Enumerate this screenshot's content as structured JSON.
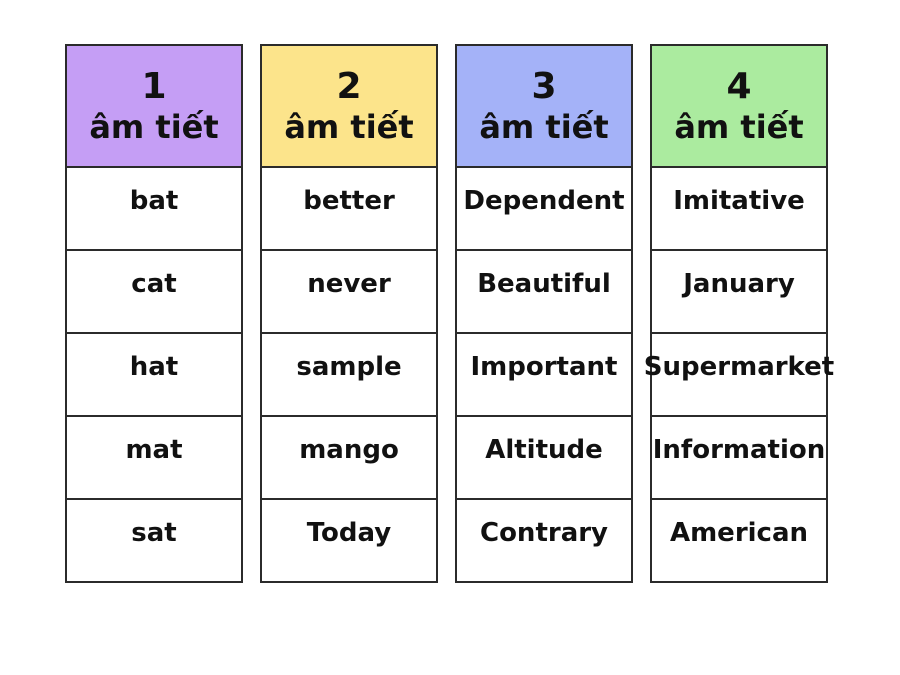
{
  "page": {
    "background_color": "#ffffff",
    "border_color": "#2b2b2b",
    "text_color": "#111111"
  },
  "columns": [
    {
      "number": "1",
      "label": "âm tiết",
      "header_color": "#c59ef5",
      "words": [
        "bat",
        "cat",
        "hat",
        "mat",
        "sat"
      ]
    },
    {
      "number": "2",
      "label": "âm tiết",
      "header_color": "#fce48b",
      "words": [
        "better",
        "never",
        "sample",
        "mango",
        "Today"
      ]
    },
    {
      "number": "3",
      "label": "âm tiết",
      "header_color": "#a4b2f8",
      "words": [
        "Dependent",
        "Beautiful",
        "Important",
        "Altitude",
        "Contrary"
      ]
    },
    {
      "number": "4",
      "label": "âm tiết",
      "header_color": "#abeb9f",
      "words": [
        "Imitative",
        "January",
        "Supermarket",
        "Information",
        "American"
      ]
    }
  ]
}
